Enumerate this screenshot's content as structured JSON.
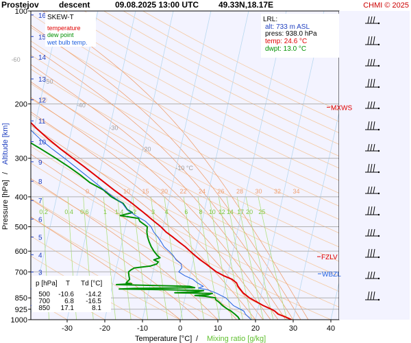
{
  "header": {
    "station": "Prostejov",
    "mode": "descent",
    "datetime": "09.08.2025 13:00 UTC",
    "location": "49.33N,18.17E",
    "credit": "CHMI © 2025"
  },
  "legend": {
    "title": "SKEW-T",
    "items": [
      {
        "label": "temperature",
        "color": "#e00000"
      },
      {
        "label": "dew point",
        "color": "#009000"
      },
      {
        "label": "wet bulb temp.",
        "color": "#2060e0"
      }
    ]
  },
  "lrl": {
    "title": "LRL:",
    "alt": "alt: 733 m ASL",
    "press": "press: 938.0 hPa",
    "temp": "temp: 24.6 °C",
    "dwpt": "dwpt: 13.0 °C"
  },
  "levels_table": {
    "headers": [
      "p [hPa]",
      "T",
      "Td [°C]"
    ],
    "rows": [
      [
        "500",
        "-10.6",
        "-14.2"
      ],
      [
        "700",
        "6.8",
        "-16.5"
      ],
      [
        "850",
        "17.1",
        "8.1"
      ]
    ]
  },
  "markers": {
    "mxws": "MXWS",
    "fzlv": "FZLV",
    "wbzl": "WBZL"
  },
  "colors": {
    "temperature": "#e00000",
    "dewpoint": "#009000",
    "wetbulb": "#2060e0",
    "isotherm": "#b8d8f0",
    "dry_adiabat": "#f5c9a0",
    "moist_adiabat": "#f0a070",
    "mixing_ratio": "#b0e080",
    "isobar": "#b0b0b0",
    "plot_bg": "#f3f3ff",
    "credit": "#cc0000",
    "altitude_label": "#2040c0"
  },
  "chart_data": {
    "type": "line",
    "xlabel": "Temperature [°C]",
    "xlabel_extra": "Mixing ratio [g/kg]",
    "ylabel": "Pressure [hPa]",
    "ylabel_extra": "Altitude [km]",
    "xlim": [
      -35,
      45
    ],
    "ylim": [
      1000,
      100
    ],
    "y_scale": "log",
    "skew": true,
    "x_ticks": [
      -30,
      -20,
      -10,
      0,
      10,
      20,
      30,
      40
    ],
    "pressure_ticks": [
      100,
      200,
      300,
      400,
      500,
      600,
      700,
      850,
      925,
      1000
    ],
    "altitude_ticks": [
      {
        "km": 1,
        "p": 900
      },
      {
        "km": 2,
        "p": 795
      },
      {
        "km": 3,
        "p": 701
      },
      {
        "km": 4,
        "p": 616
      },
      {
        "km": 5,
        "p": 540
      },
      {
        "km": 6,
        "p": 472
      },
      {
        "km": 7,
        "p": 411
      },
      {
        "km": 8,
        "p": 356
      },
      {
        "km": 9,
        "p": 308
      },
      {
        "km": 10,
        "p": 265
      },
      {
        "km": 11,
        "p": 227
      },
      {
        "km": 12,
        "p": 194
      },
      {
        "km": 13,
        "p": 166
      },
      {
        "km": 14,
        "p": 141
      },
      {
        "km": 15,
        "p": 121
      },
      {
        "km": 16,
        "p": 103
      }
    ],
    "isotherm_labels": [
      {
        "t": -80,
        "p": 107,
        "text": "-80 °C"
      },
      {
        "t": -70,
        "p": 125,
        "text": "-70"
      },
      {
        "t": -60,
        "p": 146,
        "text": "-60"
      },
      {
        "t": -50,
        "p": 172,
        "text": "-50"
      },
      {
        "t": -40,
        "p": 205,
        "text": "-40"
      },
      {
        "t": -30,
        "p": 243,
        "text": "-30"
      },
      {
        "t": -20,
        "p": 285,
        "text": "-20"
      },
      {
        "t": -10,
        "p": 328,
        "text": "-10 °C"
      }
    ],
    "dry_adiabat_labels": [
      "0",
      "5",
      "10",
      "15",
      "20",
      "25",
      "30",
      "35",
      "40",
      "45",
      "50"
    ],
    "moist_adiabat_labels": [
      "0",
      "5",
      "10",
      "15",
      "20",
      "22",
      "24",
      "26",
      "28",
      "30",
      "32",
      "34"
    ],
    "mixing_ratio_labels": [
      "0.2",
      "0.4",
      "0.6",
      "1",
      "1.4",
      "2",
      "3",
      "4",
      "6",
      "8",
      "10",
      "12",
      "14",
      "17",
      "20",
      "25"
    ],
    "series": [
      {
        "name": "temperature",
        "points": [
          [
            1000,
            29.5
          ],
          [
            980,
            27.8
          ],
          [
            960,
            25.7
          ],
          [
            938,
            24.6
          ],
          [
            925,
            23.6
          ],
          [
            900,
            21.2
          ],
          [
            880,
            19.6
          ],
          [
            850,
            17.1
          ],
          [
            820,
            15.2
          ],
          [
            800,
            14.3
          ],
          [
            780,
            13.4
          ],
          [
            760,
            12.8
          ],
          [
            740,
            11.4
          ],
          [
            720,
            8.9
          ],
          [
            700,
            6.8
          ],
          [
            680,
            5.2
          ],
          [
            660,
            3.6
          ],
          [
            640,
            1.8
          ],
          [
            620,
            0.2
          ],
          [
            600,
            -1.4
          ],
          [
            580,
            -3.0
          ],
          [
            560,
            -4.9
          ],
          [
            540,
            -6.8
          ],
          [
            520,
            -8.9
          ],
          [
            500,
            -10.6
          ],
          [
            480,
            -12.7
          ],
          [
            450,
            -16.0
          ],
          [
            420,
            -19.6
          ],
          [
            400,
            -22.3
          ],
          [
            380,
            -25.2
          ],
          [
            350,
            -29.6
          ],
          [
            320,
            -34.4
          ],
          [
            300,
            -38.0
          ],
          [
            280,
            -41.8
          ],
          [
            260,
            -45.6
          ],
          [
            240,
            -49.4
          ],
          [
            220,
            -53.2
          ],
          [
            205,
            -55.7
          ],
          [
            200,
            -56.6
          ],
          [
            190,
            -55.8
          ],
          [
            180,
            -54.4
          ],
          [
            170,
            -54.8
          ],
          [
            160,
            -55.5
          ],
          [
            150,
            -56.2
          ],
          [
            140,
            -57.0
          ],
          [
            130,
            -58.2
          ],
          [
            120,
            -58.9
          ],
          [
            110,
            -59.8
          ],
          [
            100,
            -61.0
          ]
        ]
      },
      {
        "name": "dew point",
        "points": [
          [
            1000,
            15.8
          ],
          [
            980,
            15.2
          ],
          [
            960,
            14.2
          ],
          [
            938,
            13.0
          ],
          [
            925,
            12.0
          ],
          [
            900,
            10.4
          ],
          [
            880,
            9.4
          ],
          [
            860,
            8.2
          ],
          [
            850,
            8.1
          ],
          [
            840,
            5.2
          ],
          [
            835,
            2.5
          ],
          [
            830,
            6.0
          ],
          [
            822,
            7.0
          ],
          [
            818,
            -3.0
          ],
          [
            812,
            3.0
          ],
          [
            805,
            4.5
          ],
          [
            800,
            -5.0
          ],
          [
            795,
            -18.0
          ],
          [
            792,
            -14.0
          ],
          [
            788,
            2.0
          ],
          [
            780,
            0.5
          ],
          [
            770,
            -19.0
          ],
          [
            765,
            -15.0
          ],
          [
            760,
            -16.5
          ],
          [
            740,
            -15.8
          ],
          [
            720,
            -16.2
          ],
          [
            700,
            -16.5
          ],
          [
            690,
            -16.0
          ],
          [
            680,
            -15.2
          ],
          [
            670,
            -11.0
          ],
          [
            660,
            -9.5
          ],
          [
            650,
            -9.2
          ],
          [
            640,
            -10.5
          ],
          [
            630,
            -9.0
          ],
          [
            620,
            -9.8
          ],
          [
            600,
            -11.0
          ],
          [
            580,
            -12.0
          ],
          [
            560,
            -12.8
          ],
          [
            540,
            -13.5
          ],
          [
            520,
            -14.0
          ],
          [
            500,
            -14.2
          ],
          [
            480,
            -16.5
          ],
          [
            470,
            -17.0
          ],
          [
            460,
            -22.0
          ],
          [
            450,
            -19.0
          ],
          [
            440,
            -20.5
          ],
          [
            420,
            -22.0
          ],
          [
            400,
            -25.5
          ],
          [
            380,
            -28.0
          ],
          [
            360,
            -32.0
          ],
          [
            340,
            -35.0
          ],
          [
            320,
            -38.5
          ],
          [
            300,
            -42.5
          ],
          [
            280,
            -47.0
          ],
          [
            260,
            -52.0
          ],
          [
            240,
            -57.5
          ],
          [
            220,
            -62.0
          ],
          [
            200,
            -66.0
          ],
          [
            190,
            -68.0
          ],
          [
            180,
            -70.0
          ],
          [
            170,
            -73.0
          ],
          [
            160,
            -75.5
          ],
          [
            150,
            -79.0
          ],
          [
            140,
            -82.0
          ],
          [
            130,
            -85.0
          ],
          [
            120,
            -87.5
          ],
          [
            110,
            -89.0
          ],
          [
            100,
            -90.5
          ]
        ]
      },
      {
        "name": "wet bulb temp.",
        "points": [
          [
            1000,
            18.9
          ],
          [
            960,
            17.0
          ],
          [
            938,
            16.4
          ],
          [
            900,
            13.3
          ],
          [
            850,
            10.8
          ],
          [
            820,
            8.0
          ],
          [
            800,
            5.5
          ],
          [
            790,
            3.0
          ],
          [
            780,
            4.2
          ],
          [
            760,
            2.4
          ],
          [
            740,
            1.0
          ],
          [
            720,
            -1.4
          ],
          [
            700,
            -3.2
          ],
          [
            680,
            -2.6
          ],
          [
            660,
            -3.0
          ],
          [
            640,
            -4.6
          ],
          [
            620,
            -5.6
          ],
          [
            600,
            -7.0
          ],
          [
            580,
            -8.6
          ],
          [
            560,
            -9.6
          ],
          [
            540,
            -10.8
          ],
          [
            520,
            -12.2
          ],
          [
            500,
            -13.2
          ],
          [
            480,
            -15.0
          ],
          [
            460,
            -18.0
          ],
          [
            440,
            -20.6
          ],
          [
            420,
            -22.2
          ],
          [
            400,
            -25.0
          ],
          [
            380,
            -27.8
          ],
          [
            360,
            -30.6
          ],
          [
            340,
            -33.6
          ],
          [
            320,
            -36.8
          ],
          [
            300,
            -40.2
          ],
          [
            280,
            -44.0
          ],
          [
            260,
            -47.8
          ],
          [
            240,
            -51.4
          ]
        ]
      }
    ]
  }
}
